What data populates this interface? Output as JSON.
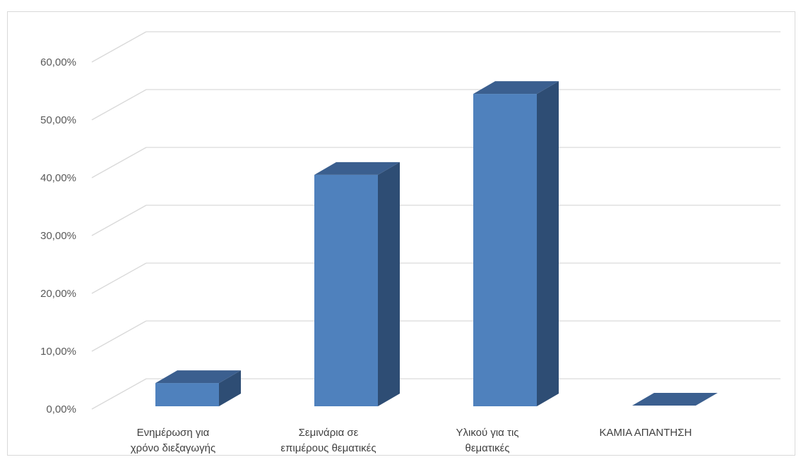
{
  "chart_data": {
    "type": "bar",
    "categories": [
      [
        "Ενημέρωση για",
        "χρόνο διεξαγωγής"
      ],
      [
        "Σεμινάρια σε",
        "επιμέρους θεματικές"
      ],
      [
        "Υλικού για τις",
        "θεματικές"
      ],
      [
        "ΚΑΜΙΑ ΑΠΑΝΤΗΣΗ"
      ]
    ],
    "values": [
      4.5,
      40.5,
      54.5,
      0
    ],
    "ylim": [
      0,
      60
    ],
    "yticks": [
      0,
      10,
      20,
      30,
      40,
      50,
      60
    ],
    "ytick_labels": [
      "0,00%",
      "10,00%",
      "20,00%",
      "30,00%",
      "40,00%",
      "50,00%",
      "60,00%"
    ],
    "grid": true,
    "three_d": true,
    "colors": {
      "bar_front": "#4f81bd",
      "bar_top": "#3b5f8f",
      "bar_side": "#2e4d74",
      "grid": "#d9d9d9",
      "tick_text": "#595959"
    }
  }
}
